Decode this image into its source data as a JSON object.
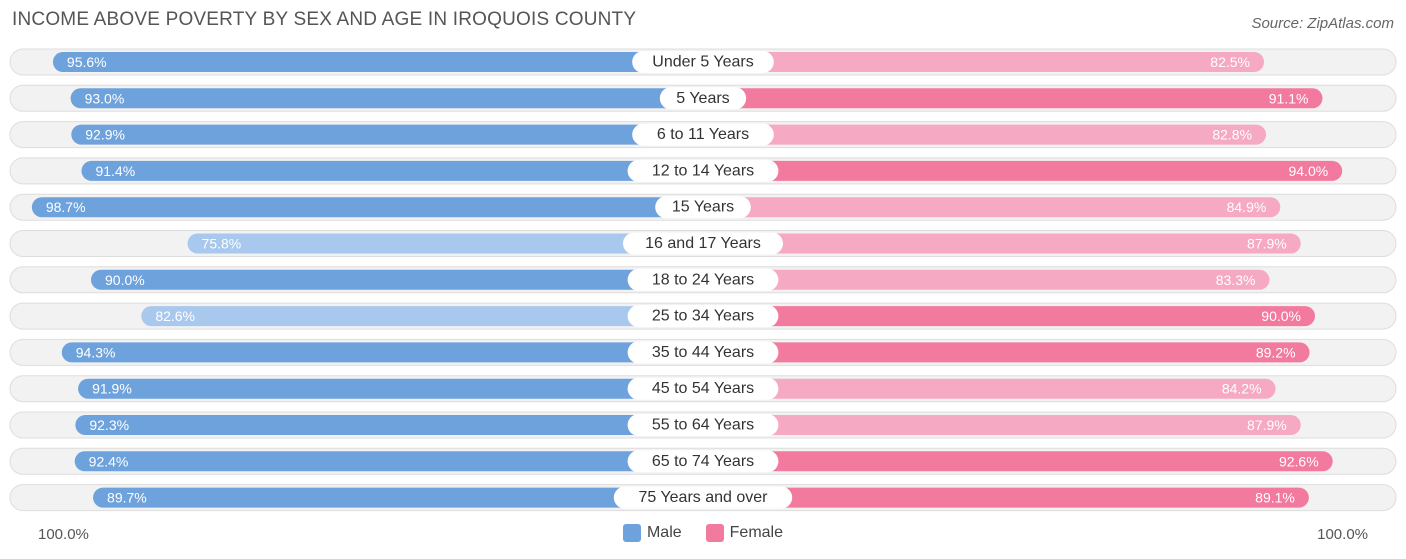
{
  "header": {
    "title": "INCOME ABOVE POVERTY BY SEX AND AGE IN IROQUOIS COUNTY",
    "source": "Source: ZipAtlas.com"
  },
  "axis": {
    "left_label": "100.0%",
    "right_label": "100.0%"
  },
  "legend": {
    "male_label": "Male",
    "female_label": "Female"
  },
  "colors": {
    "male_strong": "#6ea2dc",
    "male_light": "#a9c8ee",
    "female_strong": "#f37a9f",
    "female_light": "#f6a9c2",
    "row_bg": "#f2f2f2",
    "row_border": "#dddddd"
  },
  "chart_data": {
    "type": "bar",
    "orientation": "horizontal-diverging",
    "title": "INCOME ABOVE POVERTY BY SEX AND AGE IN IROQUOIS COUNTY",
    "categories": [
      "Under 5 Years",
      "5 Years",
      "6 to 11 Years",
      "12 to 14 Years",
      "15 Years",
      "16 and 17 Years",
      "18 to 24 Years",
      "25 to 34 Years",
      "35 to 44 Years",
      "45 to 54 Years",
      "55 to 64 Years",
      "65 to 74 Years",
      "75 Years and over"
    ],
    "series": [
      {
        "name": "Male",
        "values": [
          95.6,
          93.0,
          92.9,
          91.4,
          98.7,
          75.8,
          90.0,
          82.6,
          94.3,
          91.9,
          92.3,
          92.4,
          89.7
        ],
        "labels": [
          "95.6%",
          "93.0%",
          "92.9%",
          "91.4%",
          "98.7%",
          "75.8%",
          "90.0%",
          "82.6%",
          "94.3%",
          "91.9%",
          "92.3%",
          "92.4%",
          "89.7%"
        ]
      },
      {
        "name": "Female",
        "values": [
          82.5,
          91.1,
          82.8,
          94.0,
          84.9,
          87.9,
          83.3,
          90.0,
          89.2,
          84.2,
          87.9,
          92.6,
          89.1
        ],
        "labels": [
          "82.5%",
          "91.1%",
          "82.8%",
          "94.0%",
          "84.9%",
          "87.9%",
          "83.3%",
          "90.0%",
          "89.2%",
          "84.2%",
          "87.9%",
          "92.6%",
          "89.1%"
        ]
      }
    ],
    "xlim": [
      0,
      100
    ],
    "legend_position": "bottom-center",
    "grid": false
  }
}
